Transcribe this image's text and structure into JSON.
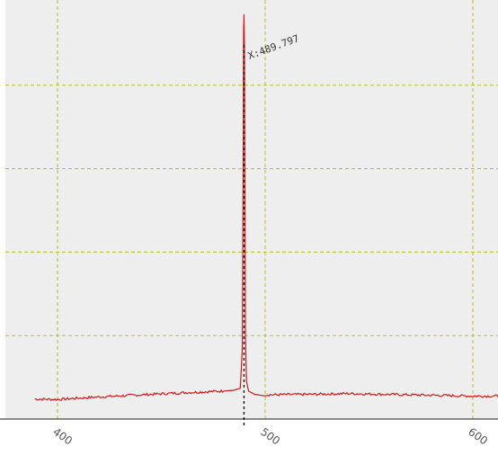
{
  "chart_data": {
    "type": "line",
    "title": "",
    "xlabel": "",
    "ylabel": "",
    "xlim": [
      389,
      614
    ],
    "ylim": [
      0,
      1.0
    ],
    "grid": true,
    "x_ticks": [
      400,
      500,
      600
    ],
    "x_tick_labels": [
      "400",
      "500",
      "600"
    ],
    "y_gridlines": [
      0.2,
      0.4,
      0.6,
      0.8
    ],
    "series": [
      {
        "color": "#d11919",
        "x": [
          389,
          400,
          420,
          440,
          460,
          470,
          480,
          485,
          488,
          489,
          489.4,
          489.6,
          489.8,
          490.0,
          490.2,
          490.5,
          491,
          492,
          495,
          500,
          520,
          540,
          560,
          580,
          600,
          614
        ],
        "y": [
          0.048,
          0.047,
          0.053,
          0.058,
          0.063,
          0.065,
          0.067,
          0.069,
          0.074,
          0.17,
          0.6,
          0.93,
          0.97,
          0.9,
          0.6,
          0.2,
          0.09,
          0.067,
          0.059,
          0.058,
          0.059,
          0.061,
          0.059,
          0.057,
          0.055,
          0.055
        ]
      }
    ],
    "marker": {
      "x": 489.797,
      "label": "X:489.797",
      "line_color": "#000000",
      "line_style": "dashed"
    },
    "colors": {
      "plot_background": "#eeeeee",
      "grid": "#b8c020",
      "axis_line": "#666666"
    }
  }
}
